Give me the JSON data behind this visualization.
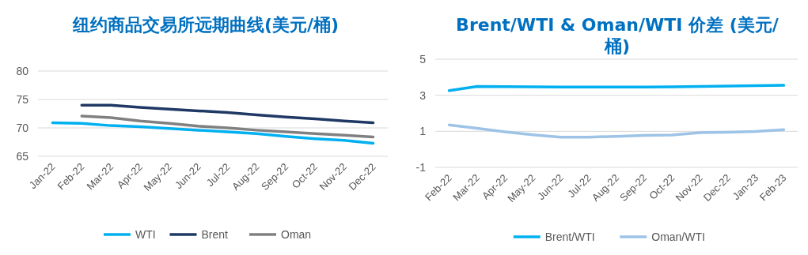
{
  "chart_data": [
    {
      "type": "line",
      "title": "纽约商品交易所远期曲线(美元/桶)",
      "categories": [
        "Jan-22",
        "Feb-22",
        "Mar-22",
        "Apr-22",
        "May-22",
        "Jun-22",
        "Jul-22",
        "Aug-22",
        "Sep-22",
        "Oct-22",
        "Nov-22",
        "Dec-22"
      ],
      "series": [
        {
          "name": "WTI",
          "color": "#00b0f0",
          "values": [
            70.9,
            70.8,
            70.4,
            70.2,
            69.9,
            69.6,
            69.3,
            69.0,
            68.5,
            68.1,
            67.8,
            67.3
          ]
        },
        {
          "name": "Brent",
          "color": "#1f3864",
          "values": [
            null,
            74.0,
            74.0,
            73.6,
            73.3,
            73.0,
            72.7,
            72.3,
            71.9,
            71.6,
            71.2,
            70.9
          ]
        },
        {
          "name": "Oman",
          "color": "#808080",
          "values": [
            null,
            72.1,
            71.8,
            71.2,
            70.8,
            70.3,
            70.0,
            69.6,
            69.3,
            69.0,
            68.7,
            68.4
          ]
        }
      ],
      "ylim": [
        65,
        80
      ],
      "yticks": [
        65,
        70,
        75,
        80
      ],
      "grid": "y",
      "legend": "bottom"
    },
    {
      "type": "line",
      "title": "Brent/WTI & Oman/WTI 价差 (美元/桶)",
      "categories": [
        "Feb-22",
        "Mar-22",
        "Apr-22",
        "May-22",
        "Jun-22",
        "Jul-22",
        "Aug-22",
        "Sep-22",
        "Oct-22",
        "Nov-22",
        "Dec-22",
        "Jan-23",
        "Feb-23"
      ],
      "series": [
        {
          "name": "Brent/WTI",
          "color": "#00b0f0",
          "values": [
            3.26,
            3.49,
            3.48,
            3.47,
            3.46,
            3.46,
            3.46,
            3.46,
            3.47,
            3.49,
            3.51,
            3.53,
            3.55
          ]
        },
        {
          "name": "Oman/WTI",
          "color": "#9dc3e6",
          "values": [
            1.35,
            1.17,
            0.97,
            0.81,
            0.68,
            0.68,
            0.72,
            0.77,
            0.8,
            0.93,
            0.95,
            0.99,
            1.09
          ]
        }
      ],
      "ylim": [
        -1,
        5
      ],
      "yticks": [
        -1,
        1,
        3,
        5
      ],
      "grid": "y",
      "legend": "bottom"
    }
  ]
}
